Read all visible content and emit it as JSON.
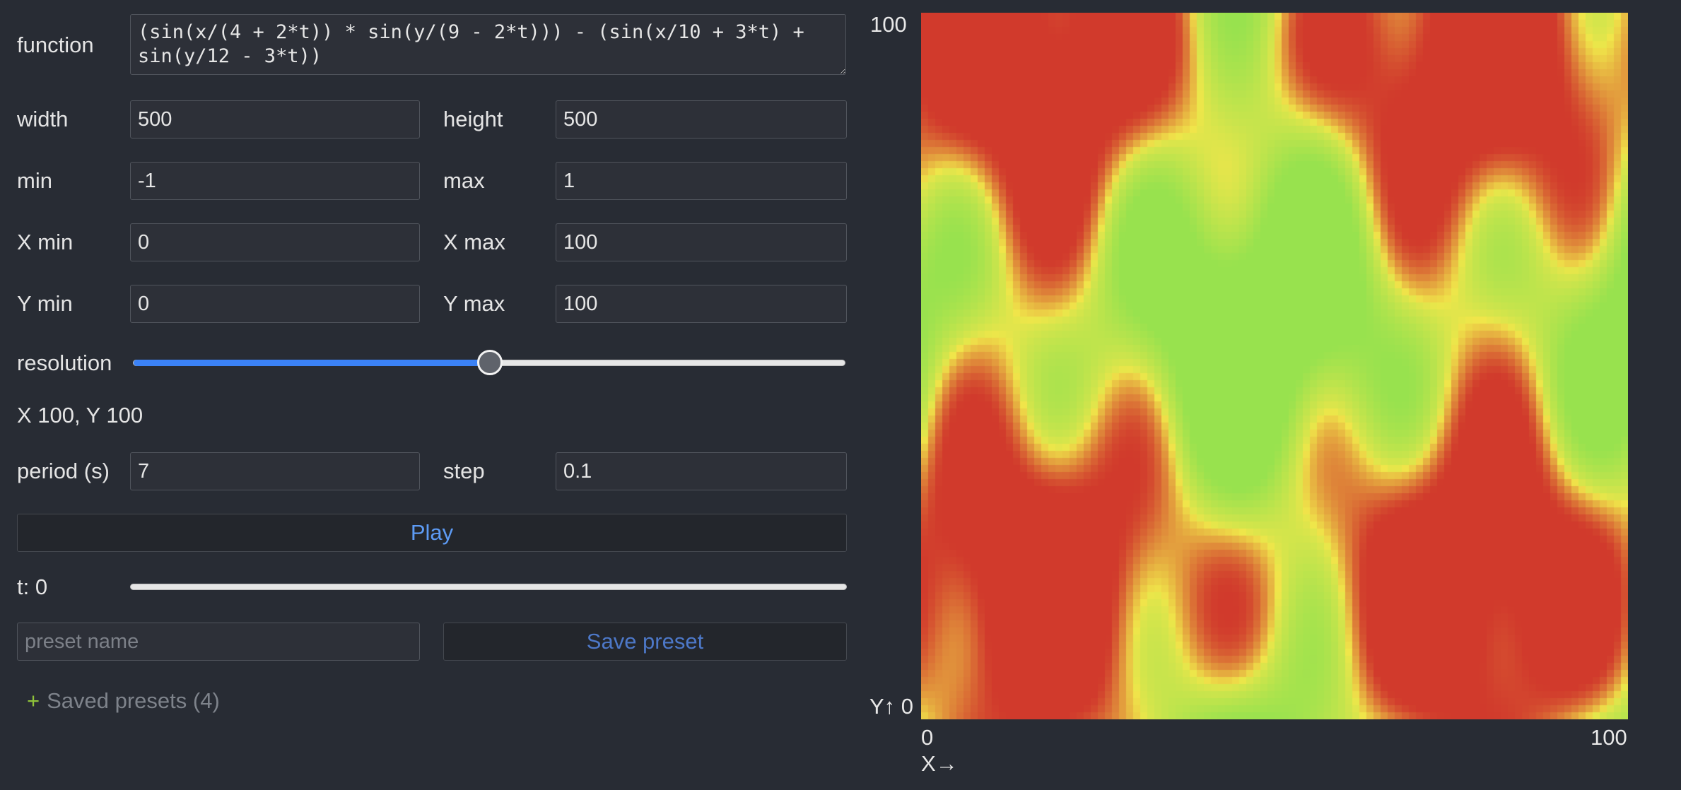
{
  "controls": {
    "function_label": "function",
    "function_value": "(sin(x/(4 + 2*t)) * sin(y/(9 - 2*t))) - (sin(x/10 + 3*t) + sin(y/12 - 3*t))",
    "width_label": "width",
    "width_value": "500",
    "height_label": "height",
    "height_value": "500",
    "min_label": "min",
    "min_value": "-1",
    "max_label": "max",
    "max_value": "1",
    "xmin_label": "X min",
    "xmin_value": "0",
    "xmax_label": "X max",
    "xmax_value": "100",
    "ymin_label": "Y min",
    "ymin_value": "0",
    "ymax_label": "Y max",
    "ymax_value": "100",
    "resolution_label": "resolution",
    "resolution_fraction": 0.5,
    "resolution_readout": "X 100, Y 100",
    "period_label": "period (s)",
    "period_value": "7",
    "step_label": "step",
    "step_value": "0.1",
    "play_label": "Play",
    "t_label": "t: 0",
    "t_fraction": 0,
    "preset_placeholder": "preset name",
    "save_preset_label": "Save preset",
    "presets_plus": "+",
    "presets_label": "Saved presets (4)"
  },
  "plot": {
    "y_max_tick": "100",
    "y_min_tick": "Y↑ 0",
    "x_min_tick": "0",
    "x_max_tick": "100",
    "x_axis_label": "X→",
    "grid_cells": 100,
    "t": 0,
    "min": -1,
    "max": 1,
    "colors": {
      "low": "#d13a2c",
      "mid": "#f0e64a",
      "high": "#98e24e"
    }
  }
}
